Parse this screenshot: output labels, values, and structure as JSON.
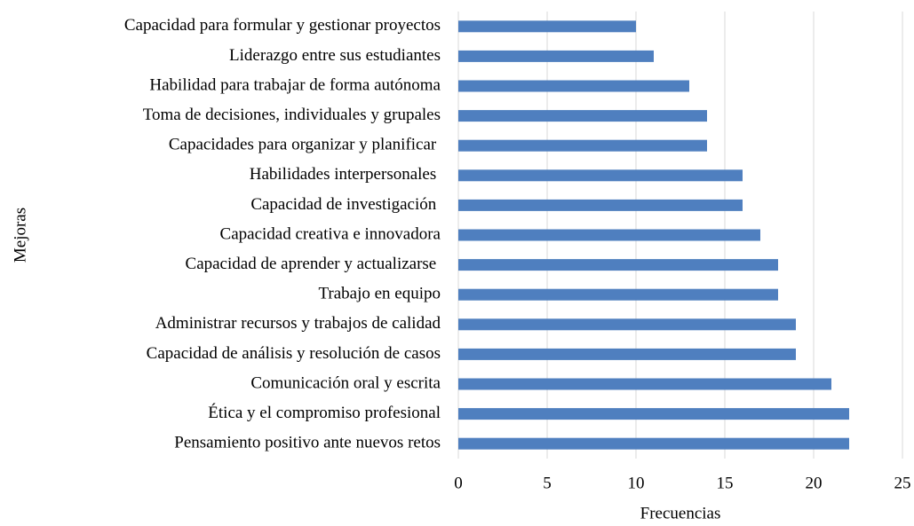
{
  "chart_data": {
    "type": "bar",
    "orientation": "horizontal",
    "x_label": "Frecuencias",
    "y_label": "Mejoras",
    "categories": [
      "Capacidad para formular y gestionar proyectos",
      "Liderazgo entre sus estudiantes",
      "Habilidad para trabajar de forma autónoma",
      "Toma de decisiones, individuales y grupales",
      "Capacidades para organizar y planificar ",
      "Habilidades interpersonales ",
      "Capacidad de investigación ",
      "Capacidad creativa e innovadora",
      "Capacidad de aprender y actualizarse ",
      "Trabajo en equipo",
      "Administrar recursos y trabajos de calidad",
      "Capacidad de análisis y resolución de casos",
      "Comunicación oral y escrita",
      "Ética y el compromiso profesional",
      "Pensamiento positivo ante nuevos retos"
    ],
    "values": [
      10,
      11,
      13,
      14,
      14,
      16,
      16,
      17,
      18,
      18,
      19,
      19,
      21,
      22,
      22
    ],
    "color": "#4f7fbf",
    "xlim": [
      0,
      25
    ],
    "xticks": [
      0,
      5,
      10,
      15,
      20,
      25
    ],
    "grid": true
  }
}
